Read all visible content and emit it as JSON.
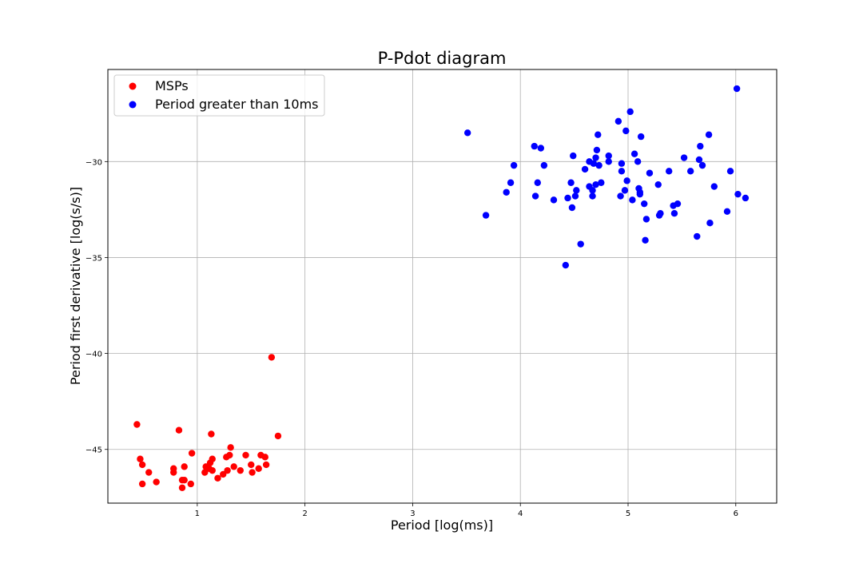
{
  "chart_data": {
    "type": "scatter",
    "title": "P-Pdot diagram",
    "xlabel": "Period [log(ms)]",
    "ylabel": "Period first derivative [log(s/s)]",
    "xlim": [
      0.17,
      6.38
    ],
    "ylim": [
      -47.8,
      -25.2
    ],
    "xticks": [
      1,
      2,
      3,
      4,
      5,
      6
    ],
    "yticks": [
      -30,
      -35,
      -40,
      -45
    ],
    "grid": true,
    "legend_position": "top-left",
    "series": [
      {
        "name": "MSPs",
        "color": "#ff0000",
        "points": [
          [
            0.44,
            -43.7
          ],
          [
            0.47,
            -45.5
          ],
          [
            0.49,
            -45.8
          ],
          [
            0.49,
            -46.8
          ],
          [
            0.55,
            -46.2
          ],
          [
            0.62,
            -46.7
          ],
          [
            0.78,
            -46.2
          ],
          [
            0.78,
            -46.0
          ],
          [
            0.83,
            -44.0
          ],
          [
            0.86,
            -46.6
          ],
          [
            0.86,
            -47.0
          ],
          [
            0.88,
            -46.6
          ],
          [
            0.88,
            -45.9
          ],
          [
            0.94,
            -46.8
          ],
          [
            0.95,
            -45.2
          ],
          [
            1.07,
            -46.2
          ],
          [
            1.08,
            -45.9
          ],
          [
            1.11,
            -46.0
          ],
          [
            1.12,
            -45.7
          ],
          [
            1.13,
            -44.2
          ],
          [
            1.14,
            -45.5
          ],
          [
            1.14,
            -46.1
          ],
          [
            1.19,
            -46.5
          ],
          [
            1.24,
            -46.3
          ],
          [
            1.27,
            -45.4
          ],
          [
            1.28,
            -46.1
          ],
          [
            1.3,
            -45.3
          ],
          [
            1.31,
            -44.9
          ],
          [
            1.34,
            -45.9
          ],
          [
            1.4,
            -46.1
          ],
          [
            1.45,
            -45.3
          ],
          [
            1.5,
            -45.8
          ],
          [
            1.51,
            -46.2
          ],
          [
            1.57,
            -46.0
          ],
          [
            1.59,
            -45.3
          ],
          [
            1.63,
            -45.4
          ],
          [
            1.64,
            -45.8
          ],
          [
            1.69,
            -40.2
          ],
          [
            1.75,
            -44.3
          ]
        ]
      },
      {
        "name": "Period greater than 10ms",
        "color": "#0000ff",
        "points": [
          [
            3.51,
            -28.5
          ],
          [
            3.68,
            -32.8
          ],
          [
            3.87,
            -31.6
          ],
          [
            3.91,
            -31.1
          ],
          [
            3.94,
            -30.2
          ],
          [
            4.13,
            -29.2
          ],
          [
            4.14,
            -31.8
          ],
          [
            4.16,
            -31.1
          ],
          [
            4.19,
            -29.3
          ],
          [
            4.22,
            -30.2
          ],
          [
            4.31,
            -32.0
          ],
          [
            4.42,
            -35.4
          ],
          [
            4.44,
            -31.9
          ],
          [
            4.47,
            -31.1
          ],
          [
            4.48,
            -32.4
          ],
          [
            4.49,
            -29.7
          ],
          [
            4.51,
            -31.8
          ],
          [
            4.52,
            -31.5
          ],
          [
            4.56,
            -34.3
          ],
          [
            4.6,
            -30.4
          ],
          [
            4.64,
            -30.0
          ],
          [
            4.64,
            -31.3
          ],
          [
            4.67,
            -31.5
          ],
          [
            4.67,
            -31.8
          ],
          [
            4.68,
            -30.1
          ],
          [
            4.7,
            -29.8
          ],
          [
            4.7,
            -31.2
          ],
          [
            4.71,
            -29.4
          ],
          [
            4.72,
            -28.6
          ],
          [
            4.73,
            -30.2
          ],
          [
            4.75,
            -31.1
          ],
          [
            4.82,
            -29.7
          ],
          [
            4.82,
            -30.0
          ],
          [
            4.91,
            -27.9
          ],
          [
            4.93,
            -31.8
          ],
          [
            4.94,
            -30.5
          ],
          [
            4.94,
            -30.1
          ],
          [
            4.97,
            -31.5
          ],
          [
            4.98,
            -28.4
          ],
          [
            4.99,
            -31.0
          ],
          [
            5.02,
            -27.4
          ],
          [
            5.04,
            -32.0
          ],
          [
            5.06,
            -29.6
          ],
          [
            5.09,
            -30.0
          ],
          [
            5.1,
            -31.4
          ],
          [
            5.11,
            -31.6
          ],
          [
            5.11,
            -31.7
          ],
          [
            5.12,
            -28.7
          ],
          [
            5.15,
            -32.2
          ],
          [
            5.16,
            -34.1
          ],
          [
            5.17,
            -33.0
          ],
          [
            5.2,
            -30.6
          ],
          [
            5.28,
            -31.2
          ],
          [
            5.29,
            -32.8
          ],
          [
            5.3,
            -32.7
          ],
          [
            5.38,
            -30.5
          ],
          [
            5.42,
            -32.3
          ],
          [
            5.43,
            -32.7
          ],
          [
            5.46,
            -32.2
          ],
          [
            5.52,
            -29.8
          ],
          [
            5.58,
            -30.5
          ],
          [
            5.64,
            -33.9
          ],
          [
            5.66,
            -29.9
          ],
          [
            5.67,
            -29.2
          ],
          [
            5.69,
            -30.2
          ],
          [
            5.75,
            -28.6
          ],
          [
            5.76,
            -33.2
          ],
          [
            5.8,
            -31.3
          ],
          [
            5.92,
            -32.6
          ],
          [
            5.95,
            -30.5
          ],
          [
            6.01,
            -26.2
          ],
          [
            6.02,
            -31.7
          ],
          [
            6.09,
            -31.9
          ]
        ]
      }
    ]
  }
}
